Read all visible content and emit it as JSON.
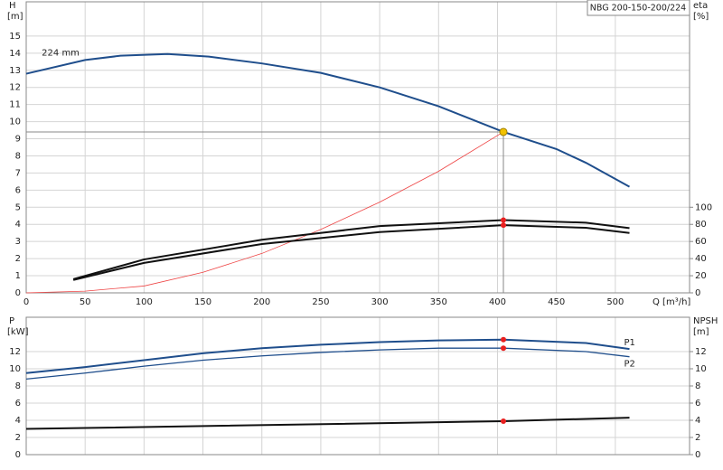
{
  "chart_data": [
    {
      "type": "line",
      "title": "NBG 200-150-200/224",
      "xlabel": "Q [m³/h]",
      "ylabel": "H",
      "yunit": "[m]",
      "y2label": "eta",
      "y2unit": "[%]",
      "xlim": [
        0,
        563
      ],
      "xticks": [
        0,
        50,
        100,
        150,
        200,
        250,
        300,
        350,
        400,
        450,
        500
      ],
      "ylim": [
        0,
        17
      ],
      "yticks": [
        0,
        1,
        2,
        3,
        4,
        5,
        6,
        7,
        8,
        9,
        10,
        11,
        12,
        13,
        14,
        15
      ],
      "y2lim": [
        0,
        340
      ],
      "y2ticks": [
        0,
        20,
        40,
        60,
        80,
        100
      ],
      "grid": true,
      "operating_point": {
        "x": 405,
        "y": 9.4,
        "color": "#f2c200"
      },
      "series": [
        {
          "name": "224 mm",
          "color": "#1f4e8c",
          "x": [
            0,
            50,
            80,
            120,
            155,
            200,
            250,
            300,
            350,
            405,
            450,
            475,
            512
          ],
          "values": [
            12.8,
            13.6,
            13.85,
            13.95,
            13.8,
            13.4,
            12.85,
            12.0,
            10.9,
            9.4,
            8.4,
            7.6,
            6.2
          ]
        },
        {
          "color": "#ee4444",
          "x": [
            0,
            50,
            100,
            150,
            200,
            250,
            300,
            350,
            405
          ],
          "values": [
            0,
            0.1,
            0.4,
            1.2,
            2.3,
            3.7,
            5.3,
            7.1,
            9.4
          ]
        },
        {
          "color": "#111111",
          "axis": "y2",
          "x": [
            40,
            100,
            200,
            300,
            405,
            475,
            512
          ],
          "values": [
            16,
            39,
            62,
            78,
            85,
            82,
            75.6
          ],
          "point": {
            "x": 405,
            "y": 85,
            "color": "#e82020"
          }
        },
        {
          "color": "#111111",
          "axis": "y2",
          "x": [
            40,
            100,
            200,
            300,
            405,
            475,
            512
          ],
          "values": [
            15,
            35,
            57,
            71,
            79,
            76,
            70
          ],
          "point": {
            "x": 405,
            "y": 79,
            "color": "#e82020"
          }
        }
      ]
    },
    {
      "type": "line",
      "ylabel": "P",
      "yunit": "[kW]",
      "y2label": "NPSH",
      "y2unit": "[m]",
      "xlim": [
        0,
        563
      ],
      "xticks": [
        0,
        50,
        100,
        150,
        200,
        250,
        300,
        350,
        400,
        450,
        500
      ],
      "ylim": [
        0,
        16
      ],
      "yticks": [
        0,
        2,
        4,
        6,
        8,
        10,
        12
      ],
      "y2lim": [
        0,
        16
      ],
      "y2ticks": [
        0,
        2,
        4,
        6,
        8,
        10,
        12
      ],
      "grid": true,
      "series": [
        {
          "name": "P1",
          "color": "#1f4e8c",
          "x": [
            0,
            50,
            100,
            150,
            200,
            250,
            300,
            350,
            405,
            475,
            512
          ],
          "values": [
            9.5,
            10.2,
            11.0,
            11.8,
            12.4,
            12.8,
            13.1,
            13.3,
            13.4,
            13.0,
            12.3
          ],
          "point": {
            "x": 405,
            "y": 13.4,
            "color": "#e82020"
          }
        },
        {
          "name": "P2",
          "color": "#1f4e8c",
          "x": [
            0,
            50,
            100,
            150,
            200,
            250,
            300,
            350,
            405,
            475,
            512
          ],
          "values": [
            8.8,
            9.5,
            10.3,
            11.0,
            11.5,
            11.9,
            12.2,
            12.4,
            12.4,
            12.0,
            11.4
          ],
          "point": {
            "x": 405,
            "y": 12.4,
            "color": "#e82020"
          }
        },
        {
          "color": "#111111",
          "axis": "y2",
          "x": [
            0,
            50,
            405,
            512
          ],
          "values": [
            3.0,
            3.1,
            3.9,
            4.3
          ],
          "point": {
            "x": 405,
            "y": 3.9,
            "color": "#e82020"
          }
        }
      ]
    }
  ]
}
